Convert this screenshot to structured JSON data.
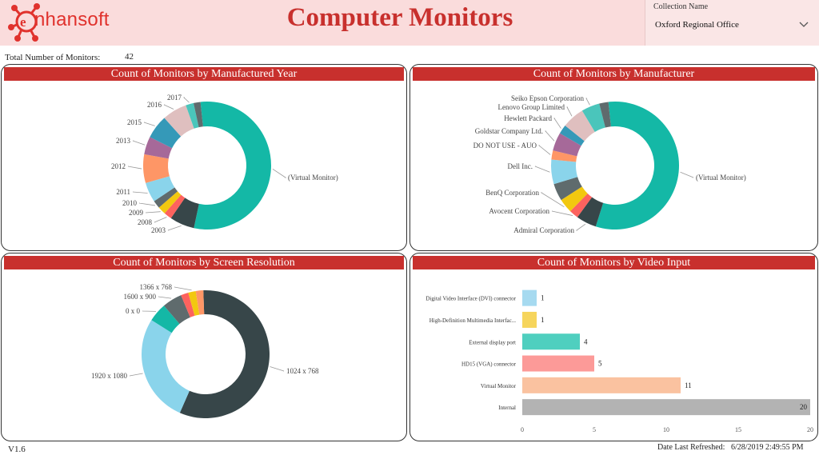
{
  "header": {
    "logo_text": "nhansoft",
    "title": "Computer Monitors",
    "collection_label": "Collection Name",
    "collection_value": "Oxford Regional Office"
  },
  "summary": {
    "total_label": "Total Number of Monitors:",
    "total_value": "42"
  },
  "colors": {
    "brand_red": "#c8302d",
    "header_bg": "#fadcdc"
  },
  "footer": {
    "version": "V1.6",
    "refreshed_label": "Date Last Refreshed:",
    "refreshed_value": "6/28/2019 2:49:55 PM"
  },
  "chart_data": [
    {
      "id": "year",
      "type": "pie",
      "title": "Count of Monitors by Manufactured Year",
      "slices": [
        {
          "label": "(Virtual Monitor)",
          "value": 22,
          "color": "#14b8a6"
        },
        {
          "label": "2003",
          "value": 2.5,
          "color": "#374649"
        },
        {
          "label": "2008",
          "value": 0.8,
          "color": "#fd625e"
        },
        {
          "label": "2009",
          "value": 0.8,
          "color": "#f2c80f"
        },
        {
          "label": "2010",
          "value": 0.8,
          "color": "#5f6b6d"
        },
        {
          "label": "2011",
          "value": 2,
          "color": "#8ad4eb"
        },
        {
          "label": "2012",
          "value": 2.9,
          "color": "#fe9666"
        },
        {
          "label": "2013",
          "value": 1.8,
          "color": "#a66999"
        },
        {
          "label": "2015",
          "value": 2.4,
          "color": "#3599b8"
        },
        {
          "label": "2016",
          "value": 2.5,
          "color": "#dfbfbf"
        },
        {
          "label": "2017",
          "value": 0.8,
          "color": "#4ac5bb"
        },
        {
          "label": "",
          "value": 0.7,
          "color": "#5f6b6d"
        }
      ]
    },
    {
      "id": "manufacturer",
      "type": "pie",
      "title": "Count of Monitors by Manufacturer",
      "slices": [
        {
          "label": "(Virtual Monitor)",
          "value": 22,
          "color": "#14b8a6"
        },
        {
          "label": "Admiral Corporation",
          "value": 2,
          "color": "#374649"
        },
        {
          "label": "Avocent Corporation",
          "value": 0.9,
          "color": "#fd625e"
        },
        {
          "label": "BenQ Corporation",
          "value": 1.4,
          "color": "#f2c80f"
        },
        {
          "label": "",
          "value": 1.7,
          "color": "#5f6b6d"
        },
        {
          "label": "Dell Inc.",
          "value": 2.4,
          "color": "#8ad4eb"
        },
        {
          "label": "DO NOT USE - AUO",
          "value": 0.9,
          "color": "#fe9666"
        },
        {
          "label": "Goldstar Company Ltd.",
          "value": 1.8,
          "color": "#a66999"
        },
        {
          "label": "Hewlett Packard",
          "value": 0.9,
          "color": "#3599b8"
        },
        {
          "label": "Lenovo Group Limited",
          "value": 2.2,
          "color": "#dfbfbf"
        },
        {
          "label": "Seiko Epson Corporation",
          "value": 1.8,
          "color": "#4ac5bb"
        },
        {
          "label": "",
          "value": 0.9,
          "color": "#5f6b6d"
        }
      ]
    },
    {
      "id": "resolution",
      "type": "pie",
      "title": "Count of Monitors by Screen Resolution",
      "slices": [
        {
          "label": "1024 x 768",
          "value": 24,
          "color": "#374649"
        },
        {
          "label": "1920 x 1080",
          "value": 11.5,
          "color": "#8ad4eb"
        },
        {
          "label": "0 x 0",
          "value": 2,
          "color": "#14b8a6"
        },
        {
          "label": "1600 x 900",
          "value": 2.1,
          "color": "#5f6b6d"
        },
        {
          "label": "",
          "value": 0.8,
          "color": "#fd625e"
        },
        {
          "label": "1366 x 768",
          "value": 0.8,
          "color": "#f2c80f"
        },
        {
          "label": "",
          "value": 0.8,
          "color": "#fe9666"
        }
      ]
    },
    {
      "id": "video",
      "type": "bar",
      "orientation": "horizontal",
      "title": "Count of Monitors by Video Input",
      "categories": [
        "Digital Video Interface (DVI) connector",
        "High-Definition Multimedia Interfac...",
        "External display port",
        "HD15 (VGA) connector",
        "Virtual Monitor",
        "Internal"
      ],
      "values": [
        1,
        1,
        4,
        5,
        11,
        20
      ],
      "colors": [
        "#a6daf0",
        "#f6d55c",
        "#4fcfbf",
        "#fc9a98",
        "#fac2a0",
        "#b3b3b3"
      ],
      "xlim": [
        0,
        20
      ],
      "xticks": [
        "0",
        "5",
        "10",
        "15",
        "20"
      ]
    }
  ]
}
